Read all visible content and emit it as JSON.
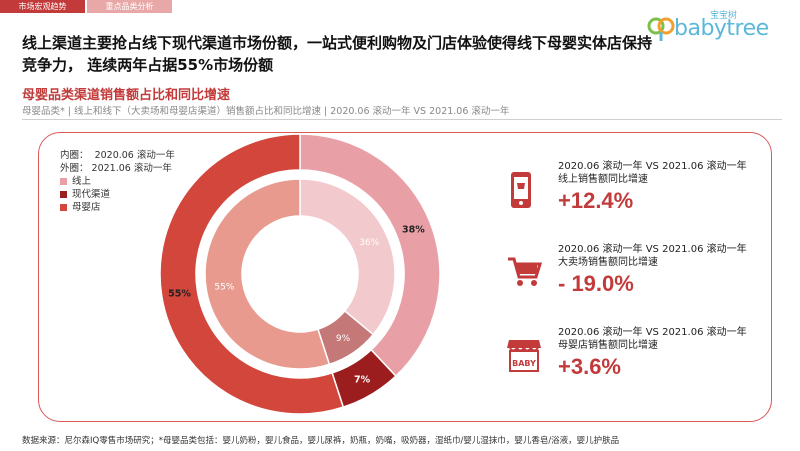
{
  "topbar": {
    "tab_active": "市场宏观趋势",
    "tab_2": "重点品类分析"
  },
  "logo": {
    "cn": "宝宝树",
    "en": "babytree"
  },
  "headline": "线上渠道主要抢占线下现代渠道市场份额，一站式便利购物及门店体验使得线下母婴实体店保持竞争力， 连续两年占据55%市场份额",
  "section_title": "母婴品类渠道销售额占比和同比增速",
  "subtitle": "母婴品类* | 线上和线下（大卖场和母婴店渠道）销售额占比和同比增速 | 2020.06 滚动一年 VS 2021.06 滚动一年",
  "legend": {
    "inner_label": "内圈：",
    "inner_value": "2020.06 滚动一年",
    "outer_label": "外圈：",
    "outer_value": "2021.06 滚动一年",
    "items": [
      "线上",
      "现代渠道",
      "母婴店"
    ]
  },
  "colors": {
    "online": "#e8a0a6",
    "online_inner": "#f2c9cc",
    "modern": "#9b1d1d",
    "modern_inner": "#c47878",
    "mother": "#d2463c",
    "mother_inner": "#e89a8f",
    "accent": "#c23a3a"
  },
  "chart_data": {
    "type": "pie",
    "categories": [
      "线上",
      "现代渠道",
      "母婴店"
    ],
    "series": [
      {
        "name": "2020.06 滚动一年",
        "values": [
          36,
          9,
          55
        ]
      },
      {
        "name": "2021.06 滚动一年",
        "values": [
          38,
          7,
          55
        ]
      }
    ],
    "labels": {
      "inner": [
        "36%",
        "9%",
        "55%"
      ],
      "outer": [
        "38%",
        "7%",
        "55%"
      ]
    }
  },
  "stats": [
    {
      "line1": "2020.06 滚动一年 VS 2021.06 滚动一年",
      "line2": "线上销售额同比增速",
      "value": "+12.4%",
      "icon": "mobile-phone-icon"
    },
    {
      "line1": "2020.06 滚动一年 VS 2021.06 滚动一年",
      "line2": "大卖场销售额同比增速",
      "value": "- 19.0%",
      "icon": "shopping-cart-icon"
    },
    {
      "line1": "2020.06 滚动一年 VS 2021.06 滚动一年",
      "line2": "母婴店销售额同比增速",
      "value": "+3.6%",
      "icon": "baby-store-icon",
      "icon_text": "BABY"
    }
  ],
  "footer": "数据来源：尼尔森IQ零售市场研究；*母婴品类包括：婴儿奶粉，婴儿食品，婴儿尿裤，奶瓶，奶嘴，吸奶器，湿纸巾/婴儿湿抹巾，婴儿香皂/浴液，婴儿护肤品"
}
